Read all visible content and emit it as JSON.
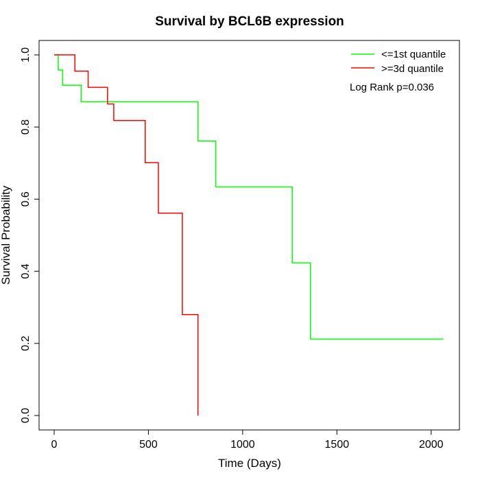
{
  "chart_data": {
    "type": "line",
    "title": "Survival by BCL6B expression",
    "xlabel": "Time (Days)",
    "ylabel": "Survival Probability",
    "xlim": [
      -80,
      2150
    ],
    "ylim": [
      -0.04,
      1.04
    ],
    "x_ticks": [
      0,
      500,
      1000,
      1500,
      2000
    ],
    "y_ticks": [
      0.0,
      0.2,
      0.4,
      0.6,
      0.8,
      1.0
    ],
    "x_tick_labels": [
      "0",
      "500",
      "1000",
      "1500",
      "2000"
    ],
    "y_tick_labels": [
      "0.0",
      "0.2",
      "0.4",
      "0.6",
      "0.8",
      "1.0"
    ],
    "grid": false,
    "legend_position": "top-right",
    "annotation": "Log Rank p=0.036",
    "series": [
      {
        "name": "<=1st quantile",
        "color": "#00ff00",
        "step": [
          [
            22,
            1.0
          ],
          [
            22,
            0.958
          ],
          [
            45,
            0.958
          ],
          [
            45,
            0.916
          ],
          [
            143,
            0.916
          ],
          [
            143,
            0.87
          ],
          [
            763,
            0.87
          ],
          [
            763,
            0.761
          ],
          [
            857,
            0.761
          ],
          [
            857,
            0.634
          ],
          [
            1263,
            0.634
          ],
          [
            1263,
            0.423
          ],
          [
            1360,
            0.423
          ],
          [
            1360,
            0.212
          ],
          [
            2065,
            0.212
          ]
        ],
        "start": [
          0,
          1.0
        ]
      },
      {
        "name": ">=3d quantile",
        "color": "#ff0000",
        "step": [
          [
            110,
            1.0
          ],
          [
            110,
            0.955
          ],
          [
            180,
            0.955
          ],
          [
            180,
            0.91
          ],
          [
            283,
            0.91
          ],
          [
            283,
            0.864
          ],
          [
            316,
            0.864
          ],
          [
            316,
            0.818
          ],
          [
            483,
            0.818
          ],
          [
            483,
            0.701
          ],
          [
            553,
            0.701
          ],
          [
            553,
            0.561
          ],
          [
            680,
            0.561
          ],
          [
            680,
            0.28
          ],
          [
            763,
            0.28
          ],
          [
            763,
            0.0
          ]
        ],
        "start": [
          0,
          1.0
        ]
      }
    ]
  }
}
